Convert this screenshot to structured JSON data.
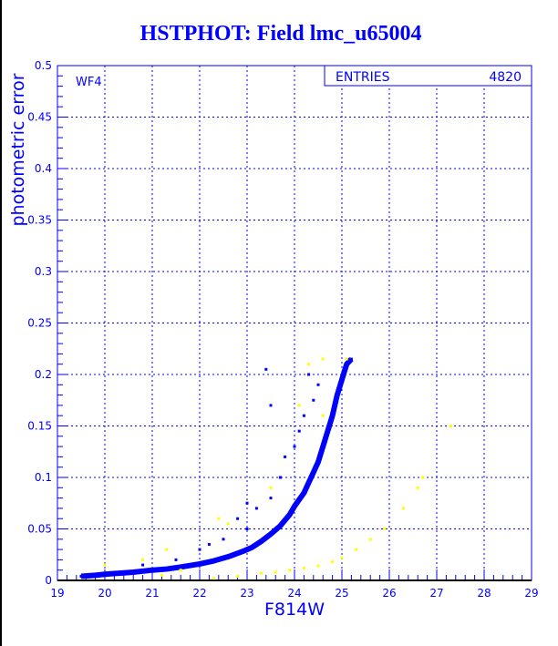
{
  "chart_data": {
    "type": "scatter",
    "title": "HSTPHOT: Field lmc_u65004",
    "xlabel": "F814W",
    "ylabel": "photometric error",
    "xlim": [
      19,
      29
    ],
    "ylim": [
      0,
      0.5
    ],
    "xticks": [
      "19",
      "20",
      "21",
      "22",
      "23",
      "24",
      "25",
      "26",
      "27",
      "28",
      "29"
    ],
    "yticks": [
      "0",
      "0.05",
      "0.1",
      "0.15",
      "0.2",
      "0.25",
      "0.3",
      "0.35",
      "0.4",
      "0.45",
      "0.5"
    ],
    "grid": true,
    "panel_label": "WF4",
    "stats_box": {
      "label": "ENTRIES",
      "value": "4820"
    },
    "colors": {
      "axis": "#0000ff",
      "primary": "#0000ff",
      "secondary": "#ffff00"
    },
    "series": [
      {
        "color": "#0000ff",
        "points": [
          [
            19.5,
            0.004
          ],
          [
            19.8,
            0.005
          ],
          [
            20,
            0.006
          ],
          [
            20.3,
            0.007
          ],
          [
            20.6,
            0.008
          ],
          [
            21,
            0.01
          ],
          [
            21.3,
            0.011
          ],
          [
            21.6,
            0.013
          ],
          [
            22,
            0.016
          ],
          [
            22.3,
            0.019
          ],
          [
            22.6,
            0.023
          ],
          [
            22.9,
            0.028
          ],
          [
            23.1,
            0.032
          ],
          [
            23.3,
            0.038
          ],
          [
            23.5,
            0.045
          ],
          [
            23.7,
            0.053
          ],
          [
            23.9,
            0.064
          ],
          [
            24.0,
            0.072
          ],
          [
            24.2,
            0.085
          ],
          [
            24.3,
            0.095
          ],
          [
            24.4,
            0.105
          ],
          [
            24.5,
            0.115
          ],
          [
            24.6,
            0.13
          ],
          [
            24.7,
            0.145
          ],
          [
            24.8,
            0.16
          ],
          [
            24.9,
            0.18
          ],
          [
            25.0,
            0.195
          ],
          [
            25.1,
            0.21
          ],
          [
            25.2,
            0.215
          ]
        ]
      },
      {
        "color": "#0000ff",
        "points": [
          [
            22,
            0.03
          ],
          [
            22.5,
            0.04
          ],
          [
            23,
            0.05
          ],
          [
            23.2,
            0.07
          ],
          [
            23.5,
            0.08
          ],
          [
            23.7,
            0.1
          ],
          [
            24,
            0.13
          ],
          [
            24.2,
            0.16
          ],
          [
            24.5,
            0.19
          ],
          [
            24.3,
            0.2
          ],
          [
            23.5,
            0.17
          ],
          [
            21.5,
            0.02
          ],
          [
            22.8,
            0.06
          ],
          [
            23,
            0.075
          ],
          [
            23.8,
            0.12
          ],
          [
            24.1,
            0.145
          ],
          [
            24.4,
            0.175
          ],
          [
            22.2,
            0.035
          ],
          [
            20.8,
            0.015
          ],
          [
            23.4,
            0.205
          ]
        ]
      },
      {
        "color": "#ffff00",
        "points": [
          [
            22.3,
            0.002
          ],
          [
            22.8,
            0.004
          ],
          [
            23.3,
            0.007
          ],
          [
            23.6,
            0.008
          ],
          [
            23.9,
            0.01
          ],
          [
            24.2,
            0.012
          ],
          [
            24.5,
            0.014
          ],
          [
            24.8,
            0.018
          ],
          [
            25.0,
            0.022
          ],
          [
            25.3,
            0.03
          ],
          [
            25.6,
            0.04
          ],
          [
            25.9,
            0.05
          ],
          [
            26.3,
            0.07
          ],
          [
            26.6,
            0.09
          ],
          [
            26.7,
            0.1
          ],
          [
            27.3,
            0.15
          ],
          [
            20,
            0.015
          ],
          [
            20.8,
            0.02
          ],
          [
            21.3,
            0.03
          ],
          [
            22.4,
            0.06
          ],
          [
            22.6,
            0.055
          ],
          [
            23.5,
            0.09
          ],
          [
            24.3,
            0.21
          ],
          [
            24.6,
            0.215
          ],
          [
            25.1,
            0.215
          ],
          [
            21.2,
            0.005
          ],
          [
            21.6,
            0.01
          ],
          [
            24.1,
            0.17
          ],
          [
            24.6,
            0.16
          ]
        ]
      }
    ]
  }
}
